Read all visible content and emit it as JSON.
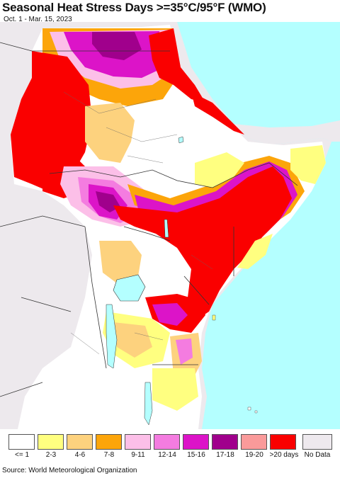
{
  "header": {
    "title": "Seasonal Heat Stress Days >=35°C/95°F (WMO)",
    "subtitle": "Oct. 1 - Mar. 15, 2023"
  },
  "legend": {
    "items": [
      {
        "label": "<= 1",
        "color": "#ffffff"
      },
      {
        "label": "2-3",
        "color": "#ffff80"
      },
      {
        "label": "4-6",
        "color": "#fdd27e"
      },
      {
        "label": "7-8",
        "color": "#fca50a"
      },
      {
        "label": "9-11",
        "color": "#fcbfe8"
      },
      {
        "label": "12-14",
        "color": "#f47ce0"
      },
      {
        "label": "15-16",
        "color": "#dc14c8"
      },
      {
        "label": "17-18",
        "color": "#a0008c"
      },
      {
        "label": "19-20",
        "color": "#fa9a9a"
      },
      {
        "label": ">20 days",
        "color": "#fa0000"
      }
    ],
    "no_data": {
      "label": "No Data",
      "color": "#eee9ee"
    }
  },
  "map_colors": {
    "ocean": "#b4ffff",
    "outside": "#ede9ed",
    "lake": "#b4ffff"
  },
  "footer": {
    "source": "Source: World Meteorological Organization"
  }
}
